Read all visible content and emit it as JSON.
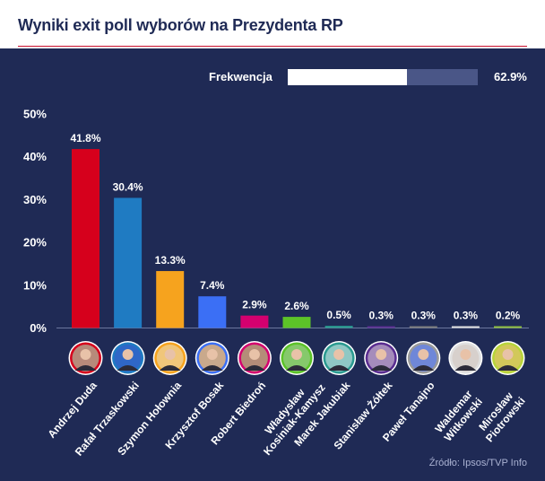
{
  "title": "Wyniki exit poll wyborów na Prezydenta RP",
  "turnout": {
    "label": "Frekwencja",
    "value_label": "62.9%",
    "value": 62.9
  },
  "source": "Źródło: Ipsos/TVP Info",
  "colors": {
    "background": "#1f2a55",
    "accent": "#c8102e",
    "track": "#4a5687"
  },
  "chart_data": {
    "type": "bar",
    "title": "Wyniki exit poll wyborów na Prezydenta RP",
    "xlabel": "",
    "ylabel": "",
    "ylim": [
      0,
      50
    ],
    "yticks": [
      "0%",
      "10%",
      "20%",
      "30%",
      "40%",
      "50%"
    ],
    "grid": false,
    "categories": [
      "Andrzej Duda",
      "Rafał Trzaskowski",
      "Szymon Hołownia",
      "Krzysztof Bosak",
      "Robert Biedroń",
      "Władysław Kosiniak-Kamysz",
      "Marek Jakubiak",
      "Stanisław Żółtek",
      "Paweł Tanajno",
      "Waldemar Witkowski",
      "Mirosław Piotrowski"
    ],
    "tick_labels": [
      [
        "Andrzej Duda"
      ],
      [
        "Rafał Trzaskowski"
      ],
      [
        "Szymon Hołownia"
      ],
      [
        "Krzysztof Bosak"
      ],
      [
        "Robert Biedroń"
      ],
      [
        "Władysław",
        "Kosiniak-Kamysz"
      ],
      [
        "Marek Jakubiak"
      ],
      [
        "Stanisław Żółtek"
      ],
      [
        "Paweł Tanajno"
      ],
      [
        "Waldemar",
        "Witkowski"
      ],
      [
        "Mirosław",
        "Piotrowski"
      ]
    ],
    "values": [
      41.8,
      30.4,
      13.3,
      7.4,
      2.9,
      2.6,
      0.5,
      0.3,
      0.3,
      0.3,
      0.2
    ],
    "data_labels": [
      "41.8%",
      "30.4%",
      "13.3%",
      "7.4%",
      "2.9%",
      "2.6%",
      "0.5%",
      "0.3%",
      "0.3%",
      "0.3%",
      "0.2%"
    ],
    "bar_colors": [
      "#d6001c",
      "#1f7bc2",
      "#f6a31e",
      "#3b6ff5",
      "#d4006f",
      "#5cc328",
      "#2a9a90",
      "#5a2d91",
      "#7d7d7d",
      "#e0e0e0",
      "#8fbf3f"
    ],
    "avatar_ring_colors": [
      "#d6001c",
      "#1f7bc2",
      "#f6a31e",
      "#3b6ff5",
      "#d4006f",
      "#5cc328",
      "#2a9a90",
      "#5a2d91",
      "#9a9a9a",
      "#e0e0e0",
      "#b7d43a"
    ],
    "avatar_bg_colors": [
      "#b78a7a",
      "#2f67c7",
      "#f0c67a",
      "#c9a98c",
      "#b48d78",
      "#86c96b",
      "#8fc8c4",
      "#a58cbb",
      "#6f87d8",
      "#d7d0cc",
      "#d2c85a"
    ]
  }
}
